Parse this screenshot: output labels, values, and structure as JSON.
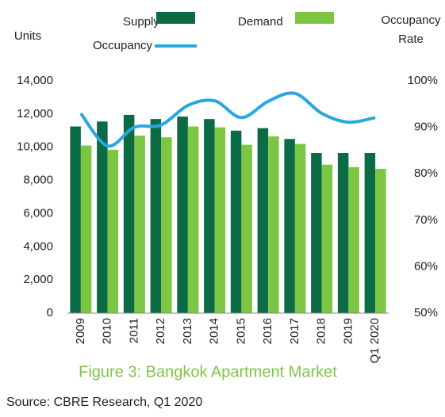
{
  "chart_data": {
    "type": "bar",
    "title": "Figure 3: Bangkok Apartment Market",
    "source": "Source: CBRE Research, Q1 2020",
    "ylabel": "Units",
    "y2label": "Occupancy Rate",
    "categories": [
      "2009",
      "2010",
      "2011",
      "2012",
      "2013",
      "2014",
      "2015",
      "2016",
      "2017",
      "2018",
      "2019",
      "Q1 2020"
    ],
    "series": [
      {
        "name": "Supply",
        "color": "#0b6b45",
        "values": [
          11250,
          11550,
          11950,
          11700,
          11850,
          11700,
          11000,
          11150,
          10500,
          9650,
          9650,
          9650
        ]
      },
      {
        "name": "Demand",
        "color": "#7cc644",
        "values": [
          10100,
          9850,
          10700,
          10600,
          11250,
          11200,
          10150,
          10650,
          10200,
          8950,
          8800,
          8700
        ]
      },
      {
        "name": "Occupancy",
        "color": "#29a8e0",
        "type": "line",
        "axis": "y2",
        "values": [
          93,
          86,
          90,
          90.5,
          94.7,
          95.7,
          92.1,
          95.6,
          97.3,
          93,
          91.1,
          92.1
        ]
      }
    ],
    "ylim": [
      0,
      14000
    ],
    "yticks": [
      0,
      {
        "value": 2000,
        "label": "2,000"
      },
      {
        "value": 4000,
        "label": "4,000"
      },
      {
        "value": 6000,
        "label": "6,000"
      },
      {
        "value": 8000,
        "label": "8,000"
      },
      {
        "value": 10000,
        "label": "10,000"
      },
      {
        "value": 12000,
        "label": "12,000"
      },
      {
        "value": 14000,
        "label": "14,000"
      }
    ],
    "y2lim": [
      50,
      100
    ],
    "y2ticks": [
      {
        "value": 50,
        "label": "50%"
      },
      {
        "value": 60,
        "label": "60%"
      },
      {
        "value": 70,
        "label": "70%"
      },
      {
        "value": 80,
        "label": "80%"
      },
      {
        "value": 90,
        "label": "90%"
      },
      {
        "value": 100,
        "label": "100%"
      }
    ],
    "grid": false
  }
}
